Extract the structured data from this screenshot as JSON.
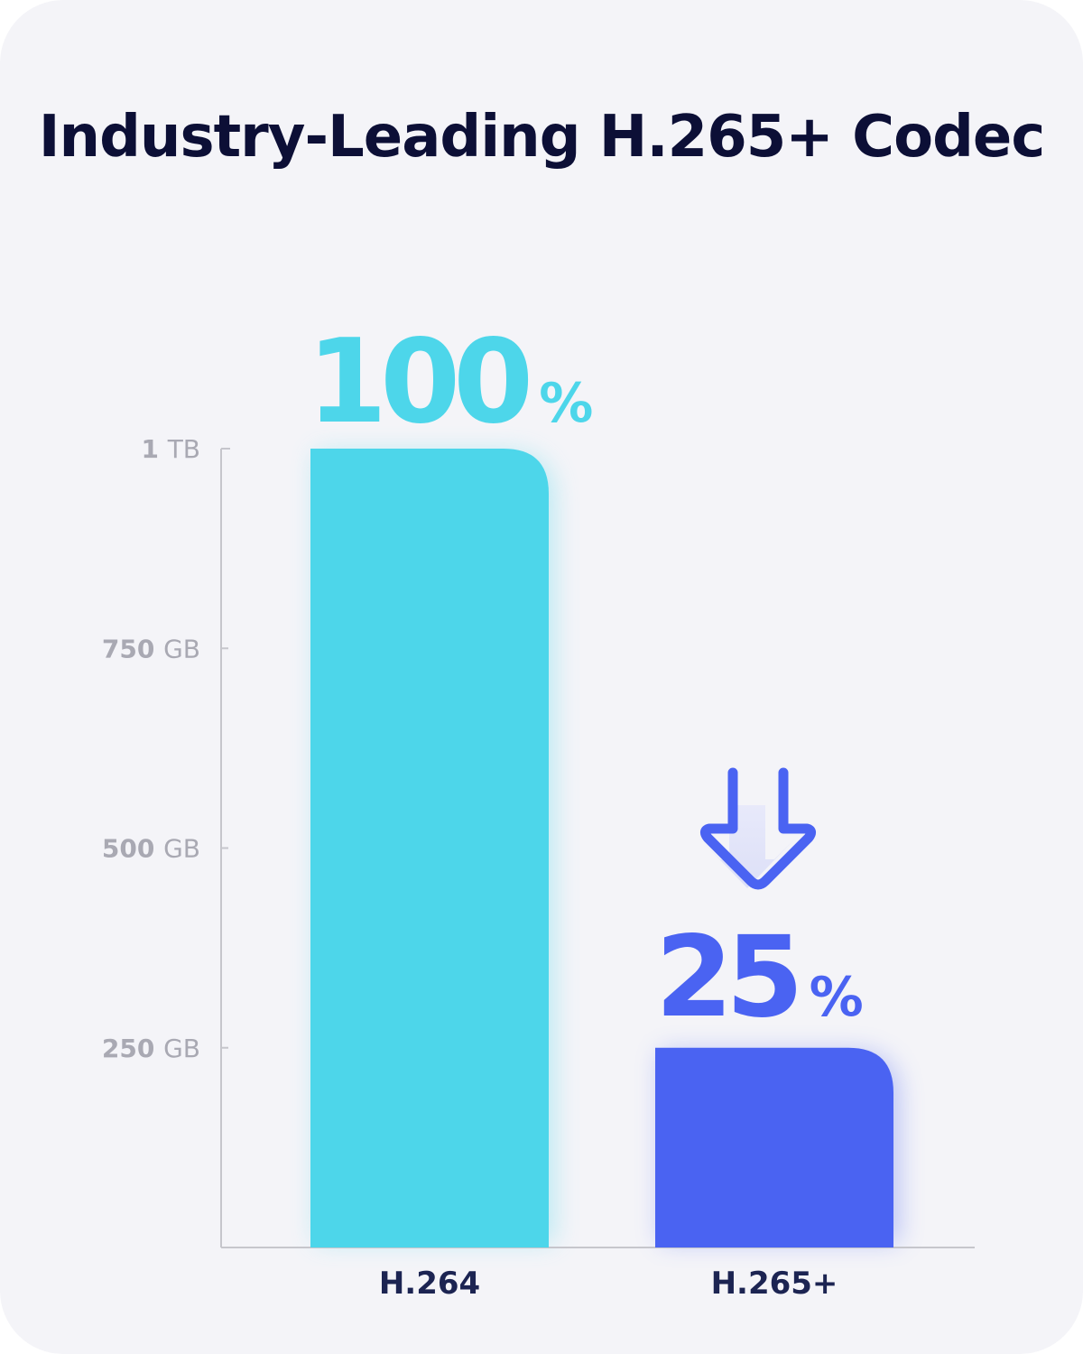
{
  "title": "Industry-Leading H.265+ Codec",
  "colors": {
    "background": "#f4f4f8",
    "title": "#0c0f36",
    "axis": "#c6c6cc",
    "tick_label": "#a9a9b3",
    "category_label": "#1c2452",
    "h264": "#4dd6ea",
    "h265": "#4a63f2"
  },
  "chart_data": {
    "type": "bar",
    "title": "Industry-Leading H.265+ Codec",
    "xlabel": "",
    "ylabel": "",
    "categories": [
      "H.264",
      "H.265+"
    ],
    "values": [
      1000,
      250
    ],
    "unit": "GB",
    "ylim": [
      0,
      1000
    ],
    "yticks": [
      {
        "value": 250,
        "num": "250",
        "unit": "GB"
      },
      {
        "value": 500,
        "num": "500",
        "unit": "GB"
      },
      {
        "value": 750,
        "num": "750",
        "unit": "GB"
      },
      {
        "value": 1000,
        "num": "1",
        "unit": "TB"
      }
    ],
    "data_labels": [
      {
        "num": "100",
        "suffix": "%"
      },
      {
        "num": "25",
        "suffix": "%"
      }
    ],
    "bar_colors": [
      "#4dd6ea",
      "#4a63f2"
    ],
    "grid": false,
    "annotations": [
      "down-arrow-icon above H.265+ bar"
    ]
  }
}
